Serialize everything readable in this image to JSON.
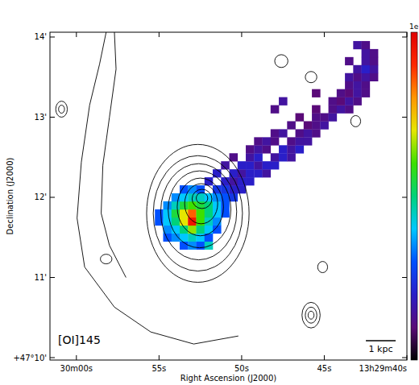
{
  "chart_data": {
    "type": "heatmap",
    "label": "[OI]145",
    "xlabel": "Right Ascension (J2000)",
    "ylabel": "Declination (J2000)",
    "xlim": [
      61.6,
      40
    ],
    "ylim": [
      9.97,
      14.06
    ],
    "xticks": [
      {
        "value": 60,
        "label": "30m00s"
      },
      {
        "value": 55,
        "label": "55s"
      },
      {
        "value": 50,
        "label": "50s"
      },
      {
        "value": 45,
        "label": "45s"
      },
      {
        "value": 40,
        "label": "13h29m40s"
      }
    ],
    "yticks": [
      {
        "value": 14,
        "label": "14'"
      },
      {
        "value": 13,
        "label": "13'"
      },
      {
        "value": 12,
        "label": "12'"
      },
      {
        "value": 11,
        "label": "11'"
      },
      {
        "value": 10,
        "label": "+47°10'"
      }
    ],
    "colorbar": {
      "range": [
        0,
        1
      ],
      "label": "1e"
    },
    "scale_bar": {
      "label": "1 kpc",
      "length": 1.8
    },
    "cells": [
      [
        53.5,
        11.4,
        0.3
      ],
      [
        53.0,
        11.4,
        0.35
      ],
      [
        52.5,
        11.4,
        0.3
      ],
      [
        52.0,
        11.4,
        0.45
      ],
      [
        54.5,
        11.5,
        0.3
      ],
      [
        54.0,
        11.5,
        0.35
      ],
      [
        53.5,
        11.5,
        0.4
      ],
      [
        53.0,
        11.5,
        0.45
      ],
      [
        52.5,
        11.5,
        0.4
      ],
      [
        52.0,
        11.5,
        0.3
      ],
      [
        54.5,
        11.6,
        0.35
      ],
      [
        54.0,
        11.6,
        0.4
      ],
      [
        53.5,
        11.6,
        0.5
      ],
      [
        53.0,
        11.6,
        0.65
      ],
      [
        52.5,
        11.6,
        0.5
      ],
      [
        52.0,
        11.6,
        0.4
      ],
      [
        51.5,
        11.6,
        0.3
      ],
      [
        55.0,
        11.7,
        0.3
      ],
      [
        54.5,
        11.7,
        0.4
      ],
      [
        54.0,
        11.7,
        0.5
      ],
      [
        53.5,
        11.7,
        0.7
      ],
      [
        53.0,
        11.7,
        0.95
      ],
      [
        52.5,
        11.7,
        0.6
      ],
      [
        52.0,
        11.7,
        0.45
      ],
      [
        51.5,
        11.7,
        0.35
      ],
      [
        55.0,
        11.8,
        0.3
      ],
      [
        54.5,
        11.8,
        0.4
      ],
      [
        54.0,
        11.8,
        0.55
      ],
      [
        53.5,
        11.8,
        0.7
      ],
      [
        53.0,
        11.8,
        0.85
      ],
      [
        52.5,
        11.8,
        0.6
      ],
      [
        52.0,
        11.8,
        0.5
      ],
      [
        51.5,
        11.8,
        0.4
      ],
      [
        51.0,
        11.8,
        0.3
      ],
      [
        54.5,
        11.9,
        0.35
      ],
      [
        54.0,
        11.9,
        0.45
      ],
      [
        53.5,
        11.9,
        0.55
      ],
      [
        53.0,
        11.9,
        0.6
      ],
      [
        52.5,
        11.9,
        0.55
      ],
      [
        52.0,
        11.9,
        0.5
      ],
      [
        51.5,
        11.9,
        0.4
      ],
      [
        51.0,
        11.9,
        0.3
      ],
      [
        54.0,
        12.0,
        0.35
      ],
      [
        53.5,
        12.0,
        0.4
      ],
      [
        53.0,
        12.0,
        0.45
      ],
      [
        52.5,
        12.0,
        0.45
      ],
      [
        52.0,
        12.0,
        0.4
      ],
      [
        51.5,
        12.0,
        0.35
      ],
      [
        51.0,
        12.0,
        0.3
      ],
      [
        50.5,
        12.0,
        0.25
      ],
      [
        53.5,
        12.1,
        0.3
      ],
      [
        53.0,
        12.1,
        0.35
      ],
      [
        52.5,
        12.1,
        0.3
      ],
      [
        51.5,
        12.1,
        0.25
      ],
      [
        51.0,
        12.1,
        0.25
      ],
      [
        50.5,
        12.1,
        0.2
      ],
      [
        50.0,
        12.1,
        0.2
      ],
      [
        52.0,
        12.2,
        0.2
      ],
      [
        51.0,
        12.2,
        0.2
      ],
      [
        50.5,
        12.2,
        0.15
      ],
      [
        50.0,
        12.2,
        0.2
      ],
      [
        49.5,
        12.2,
        0.2
      ],
      [
        51.5,
        12.3,
        0.2
      ],
      [
        50.5,
        12.3,
        0.2
      ],
      [
        50.0,
        12.3,
        0.15
      ],
      [
        49.5,
        12.3,
        0.2
      ],
      [
        49.0,
        12.3,
        0.2
      ],
      [
        48.5,
        12.3,
        0.15
      ],
      [
        51.0,
        12.4,
        0.15
      ],
      [
        50.0,
        12.4,
        0.2
      ],
      [
        49.5,
        12.4,
        0.2
      ],
      [
        49.0,
        12.4,
        0.15
      ],
      [
        48.5,
        12.4,
        0.2
      ],
      [
        48.0,
        12.4,
        0.2
      ],
      [
        50.5,
        12.5,
        0.12
      ],
      [
        49.5,
        12.5,
        0.15
      ],
      [
        49.0,
        12.5,
        0.2
      ],
      [
        48.0,
        12.5,
        0.15
      ],
      [
        47.5,
        12.5,
        0.2
      ],
      [
        47.0,
        12.5,
        0.15
      ],
      [
        49.5,
        12.6,
        0.12
      ],
      [
        49.0,
        12.6,
        0.15
      ],
      [
        48.5,
        12.6,
        0.12
      ],
      [
        47.5,
        12.6,
        0.2
      ],
      [
        47.0,
        12.6,
        0.15
      ],
      [
        46.5,
        12.6,
        0.2
      ],
      [
        49.0,
        12.7,
        0.12
      ],
      [
        48.5,
        12.7,
        0.15
      ],
      [
        48.0,
        12.7,
        0.12
      ],
      [
        47.0,
        12.7,
        0.12
      ],
      [
        46.5,
        12.7,
        0.15
      ],
      [
        46.0,
        12.7,
        0.15
      ],
      [
        48.0,
        12.8,
        0.12
      ],
      [
        47.5,
        12.8,
        0.15
      ],
      [
        46.5,
        12.8,
        0.12
      ],
      [
        46.0,
        12.8,
        0.15
      ],
      [
        45.5,
        12.8,
        0.12
      ],
      [
        47.0,
        12.9,
        0.12
      ],
      [
        46.0,
        12.9,
        0.1
      ],
      [
        45.5,
        12.9,
        0.12
      ],
      [
        45.0,
        12.9,
        0.15
      ],
      [
        46.5,
        13.0,
        0.1
      ],
      [
        45.5,
        13.0,
        0.12
      ],
      [
        45.0,
        13.0,
        0.12
      ],
      [
        44.5,
        13.0,
        0.15
      ],
      [
        48.0,
        13.1,
        0.12
      ],
      [
        45.5,
        13.1,
        0.1
      ],
      [
        44.5,
        13.1,
        0.12
      ],
      [
        44.0,
        13.1,
        0.15
      ],
      [
        43.5,
        13.1,
        0.12
      ],
      [
        47.5,
        13.2,
        0.15
      ],
      [
        44.5,
        13.2,
        0.12
      ],
      [
        44.0,
        13.2,
        0.1
      ],
      [
        43.5,
        13.2,
        0.15
      ],
      [
        43.0,
        13.2,
        0.12
      ],
      [
        45.5,
        13.3,
        0.1
      ],
      [
        44.0,
        13.3,
        0.12
      ],
      [
        43.5,
        13.3,
        0.1
      ],
      [
        43.0,
        13.3,
        0.15
      ],
      [
        42.5,
        13.3,
        0.12
      ],
      [
        43.5,
        13.4,
        0.12
      ],
      [
        43.0,
        13.4,
        0.15
      ],
      [
        42.5,
        13.4,
        0.12
      ],
      [
        43.5,
        13.5,
        0.15
      ],
      [
        43.0,
        13.5,
        0.12
      ],
      [
        42.5,
        13.5,
        0.15
      ],
      [
        42.0,
        13.5,
        0.12
      ],
      [
        43.0,
        13.6,
        0.15
      ],
      [
        42.5,
        13.6,
        0.2
      ],
      [
        42.0,
        13.6,
        0.15
      ],
      [
        43.5,
        13.7,
        0.12
      ],
      [
        42.5,
        13.7,
        0.15
      ],
      [
        42.0,
        13.7,
        0.12
      ],
      [
        42.5,
        13.8,
        0.15
      ],
      [
        42.0,
        13.8,
        0.12
      ],
      [
        43.0,
        13.9,
        0.15
      ],
      [
        42.5,
        13.9,
        0.12
      ]
    ],
    "contours": {
      "ellipses": [
        [
          52.65,
          11.8,
          3.1,
          0.86
        ],
        [
          52.65,
          11.8,
          2.7,
          0.72
        ],
        [
          52.6,
          11.82,
          2.3,
          0.6
        ],
        [
          52.55,
          11.85,
          1.9,
          0.48
        ],
        [
          52.5,
          11.88,
          1.4,
          0.36
        ],
        [
          52.45,
          11.92,
          1.0,
          0.25
        ],
        [
          52.4,
          11.98,
          0.6,
          0.12
        ],
        [
          52.4,
          11.99,
          0.35,
          0.07
        ],
        [
          47.6,
          13.7,
          0.4,
          0.08
        ],
        [
          45.8,
          13.5,
          0.35,
          0.07
        ],
        [
          45.1,
          11.13,
          0.3,
          0.07
        ],
        [
          45.8,
          10.53,
          0.55,
          0.16
        ],
        [
          45.8,
          10.53,
          0.35,
          0.1
        ],
        [
          45.8,
          10.53,
          0.18,
          0.05
        ],
        [
          43.1,
          12.95,
          0.3,
          0.07
        ],
        [
          58.2,
          11.23,
          0.35,
          0.06
        ],
        [
          60.9,
          13.1,
          0.35,
          0.1
        ],
        [
          60.9,
          13.1,
          0.18,
          0.05
        ]
      ],
      "lines": [
        [
          [
            58.2,
            14.06
          ],
          [
            58.6,
            13.66
          ],
          [
            59.2,
            13.15
          ],
          [
            59.7,
            12.44
          ],
          [
            59.96,
            11.74
          ],
          [
            59.5,
            11.13
          ],
          [
            57.7,
            10.63
          ],
          [
            55.5,
            10.32
          ],
          [
            52.9,
            10.17
          ],
          [
            50.2,
            10.27
          ]
        ],
        [
          [
            57.7,
            14.06
          ],
          [
            57.6,
            13.6
          ],
          [
            58.0,
            13.0
          ],
          [
            58.4,
            12.4
          ],
          [
            58.5,
            11.8
          ],
          [
            58.0,
            11.4
          ],
          [
            57.0,
            11.0
          ]
        ]
      ]
    }
  }
}
